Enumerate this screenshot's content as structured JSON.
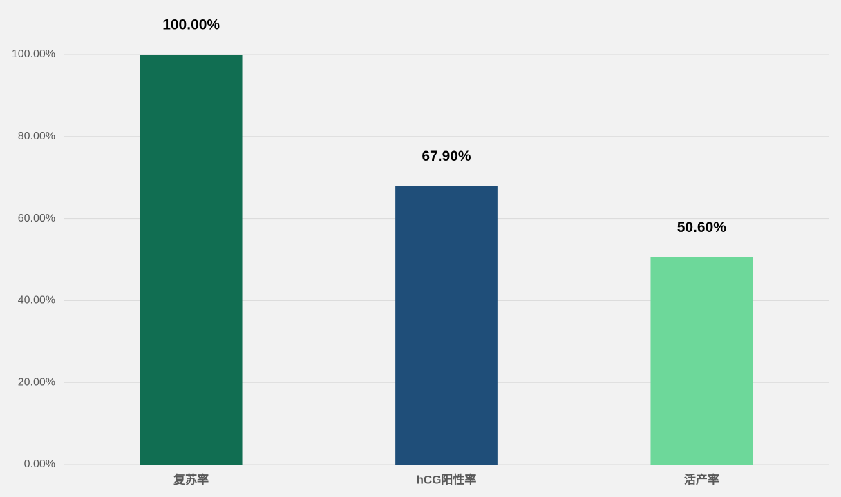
{
  "chart_data": {
    "type": "bar",
    "categories": [
      "复苏率",
      "hCG阳性率",
      "活产率"
    ],
    "values": [
      100,
      67.9,
      50.6
    ],
    "value_labels": [
      "100.00%",
      "67.90%",
      "50.60%"
    ],
    "colors": [
      "#116e52",
      "#1f4e79",
      "#6dd89a"
    ],
    "ylim": [
      0,
      100
    ],
    "yticks": [
      {
        "value": 0,
        "label": "0.00%"
      },
      {
        "value": 20,
        "label": "20.00%"
      },
      {
        "value": 40,
        "label": "40.00%"
      },
      {
        "value": 60,
        "label": "60.00%"
      },
      {
        "value": 80,
        "label": "80.00%"
      },
      {
        "value": 100,
        "label": "100.00%"
      }
    ],
    "grid": true
  }
}
